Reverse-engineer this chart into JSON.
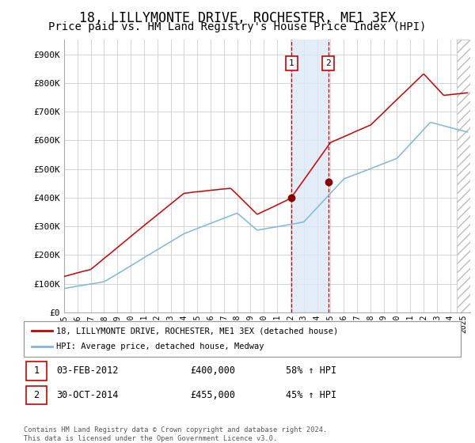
{
  "title": "18, LILLYMONTE DRIVE, ROCHESTER, ME1 3EX",
  "subtitle": "Price paid vs. HM Land Registry's House Price Index (HPI)",
  "title_fontsize": 12,
  "subtitle_fontsize": 10,
  "ylim": [
    0,
    950000
  ],
  "yticks": [
    0,
    100000,
    200000,
    300000,
    400000,
    500000,
    600000,
    700000,
    800000,
    900000
  ],
  "ytick_labels": [
    "£0",
    "£100K",
    "£200K",
    "£300K",
    "£400K",
    "£500K",
    "£600K",
    "£700K",
    "£800K",
    "£900K"
  ],
  "hpi_line_color": "#7ab8e0",
  "sale_line_color": "#cc0000",
  "marker_color": "#8b0000",
  "vline_color": "#cc0000",
  "shade_color": "#dce9f5",
  "grid_color": "#cccccc",
  "background_color": "#ffffff",
  "sale1_x": 2012.08,
  "sale1_y": 400000,
  "sale2_x": 2014.83,
  "sale2_y": 455000,
  "legend_sale": "18, LILLYMONTE DRIVE, ROCHESTER, ME1 3EX (detached house)",
  "legend_hpi": "HPI: Average price, detached house, Medway",
  "annotation1": "1",
  "annotation2": "2",
  "info1_date": "03-FEB-2012",
  "info1_price": "£400,000",
  "info1_hpi": "58% ↑ HPI",
  "info2_date": "30-OCT-2014",
  "info2_price": "£455,000",
  "info2_hpi": "45% ↑ HPI",
  "footnote": "Contains HM Land Registry data © Crown copyright and database right 2024.\nThis data is licensed under the Open Government Licence v3.0.",
  "right_hatch_x": 2024.5,
  "xlim_start": 1995.0,
  "xlim_end": 2025.5
}
